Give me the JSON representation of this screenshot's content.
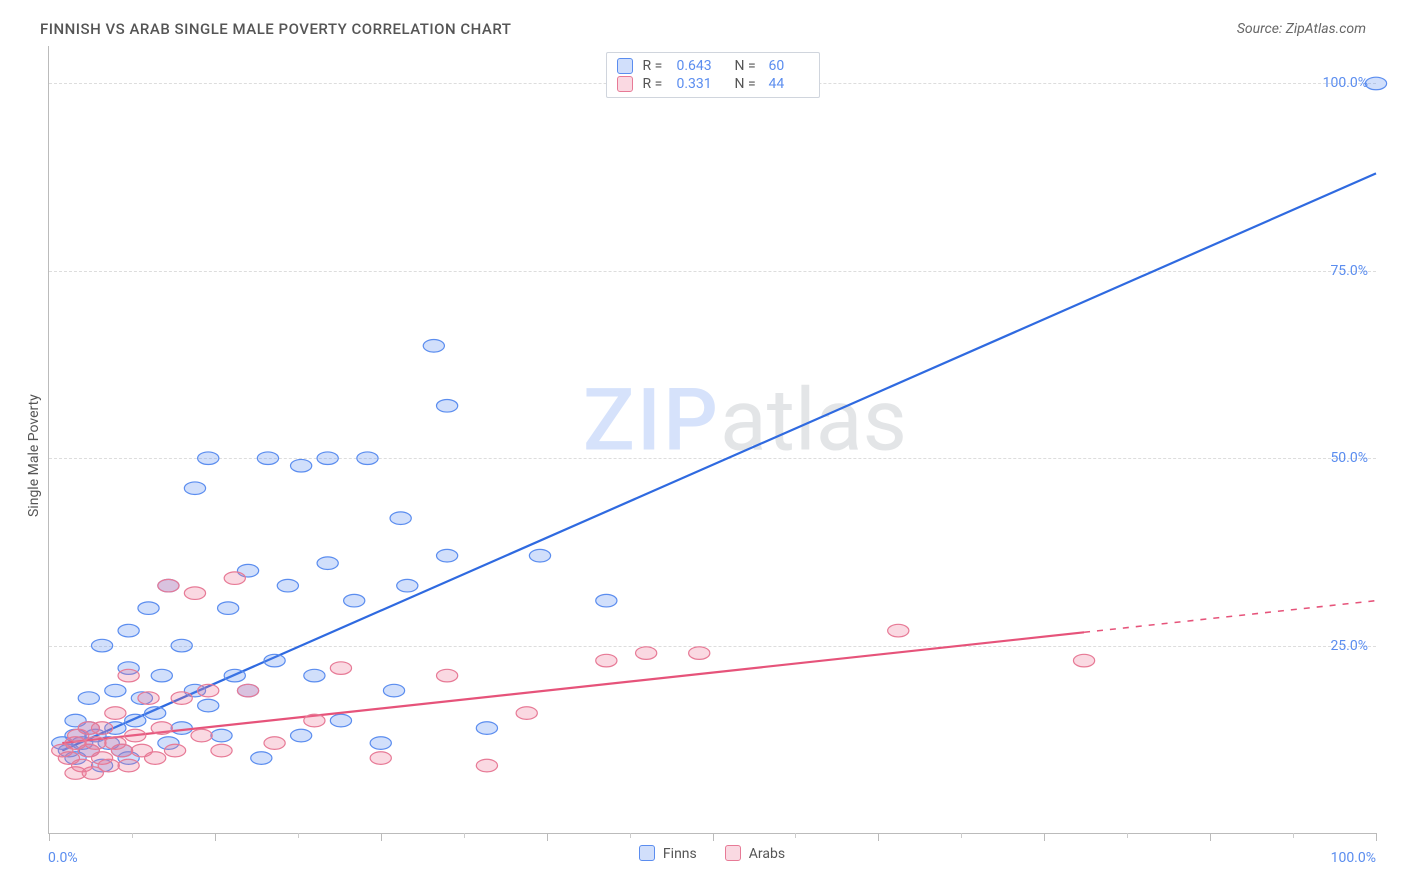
{
  "title": "FINNISH VS ARAB SINGLE MALE POVERTY CORRELATION CHART",
  "source_label": "Source: ZipAtlas.com",
  "watermark": {
    "part1": "ZIP",
    "part2": "atlas"
  },
  "ylabel": "Single Male Poverty",
  "chart": {
    "type": "scatter",
    "xlim": [
      0,
      100
    ],
    "ylim": [
      0,
      105
    ],
    "y_ticks": [
      {
        "v": 25,
        "label": "25.0%"
      },
      {
        "v": 50,
        "label": "50.0%"
      },
      {
        "v": 75,
        "label": "75.0%"
      },
      {
        "v": 100,
        "label": "100.0%"
      }
    ],
    "x_axis": {
      "min_label": "0.0%",
      "max_label": "100.0%"
    },
    "x_major_ticks": [
      0,
      12.5,
      25,
      37.5,
      50,
      62.5,
      75,
      87.5,
      100
    ],
    "x_minor_ticks": [
      6.25,
      18.75,
      31.25,
      43.75,
      56.25,
      68.75,
      81.25,
      93.75
    ],
    "background_color": "#ffffff",
    "grid_color": "#dddddd",
    "marker_radius": 8,
    "marker_stroke_width": 1.2,
    "line_width": 2.2,
    "series": [
      {
        "key": "finns",
        "legend_label": "Finns",
        "fill": "rgba(91,141,239,0.28)",
        "stroke": "#5b8def",
        "line_color": "#2f6ae0",
        "R": "0.643",
        "N": "60",
        "reg": {
          "x1": 1,
          "y1": 11,
          "x2": 100,
          "y2": 88,
          "solid_until_x": 100
        },
        "points": [
          [
            1,
            12
          ],
          [
            1.5,
            11
          ],
          [
            2,
            13
          ],
          [
            2,
            15
          ],
          [
            2,
            10
          ],
          [
            2.5,
            12
          ],
          [
            3,
            14
          ],
          [
            3,
            11
          ],
          [
            3,
            18
          ],
          [
            3.5,
            13
          ],
          [
            4,
            25
          ],
          [
            4,
            9
          ],
          [
            4.5,
            12
          ],
          [
            5,
            19
          ],
          [
            5,
            14
          ],
          [
            5.5,
            11
          ],
          [
            6,
            27
          ],
          [
            6,
            22
          ],
          [
            6,
            10
          ],
          [
            6.5,
            15
          ],
          [
            7,
            18
          ],
          [
            7.5,
            30
          ],
          [
            8,
            16
          ],
          [
            8.5,
            21
          ],
          [
            9,
            12
          ],
          [
            9,
            33
          ],
          [
            10,
            25
          ],
          [
            10,
            14
          ],
          [
            11,
            19
          ],
          [
            11,
            46
          ],
          [
            12,
            50
          ],
          [
            12,
            17
          ],
          [
            13,
            13
          ],
          [
            13.5,
            30
          ],
          [
            14,
            21
          ],
          [
            15,
            35
          ],
          [
            15,
            19
          ],
          [
            16,
            10
          ],
          [
            16.5,
            50
          ],
          [
            17,
            23
          ],
          [
            18,
            33
          ],
          [
            19,
            13
          ],
          [
            19,
            49
          ],
          [
            20,
            21
          ],
          [
            21,
            50
          ],
          [
            21,
            36
          ],
          [
            22,
            15
          ],
          [
            23,
            31
          ],
          [
            24,
            50
          ],
          [
            25,
            12
          ],
          [
            26,
            19
          ],
          [
            26.5,
            42
          ],
          [
            27,
            33
          ],
          [
            29,
            65
          ],
          [
            30,
            57
          ],
          [
            30,
            37
          ],
          [
            33,
            14
          ],
          [
            37,
            37
          ],
          [
            42,
            31
          ],
          [
            100,
            100
          ]
        ]
      },
      {
        "key": "arabs",
        "legend_label": "Arabs",
        "fill": "rgba(236,120,150,0.28)",
        "stroke": "#e77a96",
        "line_color": "#e6537a",
        "R": "0.331",
        "N": "44",
        "reg": {
          "x1": 1,
          "y1": 12,
          "x2": 100,
          "y2": 31,
          "solid_until_x": 78
        },
        "points": [
          [
            1,
            11
          ],
          [
            1.5,
            10
          ],
          [
            2,
            12
          ],
          [
            2,
            8
          ],
          [
            2.2,
            13
          ],
          [
            2.5,
            9
          ],
          [
            3,
            11
          ],
          [
            3,
            14
          ],
          [
            3.3,
            8
          ],
          [
            3.5,
            12
          ],
          [
            4,
            10
          ],
          [
            4,
            14
          ],
          [
            4.5,
            9
          ],
          [
            5,
            12
          ],
          [
            5,
            16
          ],
          [
            5.5,
            11
          ],
          [
            6,
            9
          ],
          [
            6,
            21
          ],
          [
            6.5,
            13
          ],
          [
            7,
            11
          ],
          [
            7.5,
            18
          ],
          [
            8,
            10
          ],
          [
            8.5,
            14
          ],
          [
            9,
            33
          ],
          [
            9.5,
            11
          ],
          [
            10,
            18
          ],
          [
            11,
            32
          ],
          [
            11.5,
            13
          ],
          [
            12,
            19
          ],
          [
            13,
            11
          ],
          [
            14,
            34
          ],
          [
            15,
            19
          ],
          [
            17,
            12
          ],
          [
            20,
            15
          ],
          [
            22,
            22
          ],
          [
            25,
            10
          ],
          [
            30,
            21
          ],
          [
            33,
            9
          ],
          [
            36,
            16
          ],
          [
            42,
            23
          ],
          [
            45,
            24
          ],
          [
            49,
            24
          ],
          [
            64,
            27
          ],
          [
            78,
            23
          ]
        ]
      }
    ]
  }
}
